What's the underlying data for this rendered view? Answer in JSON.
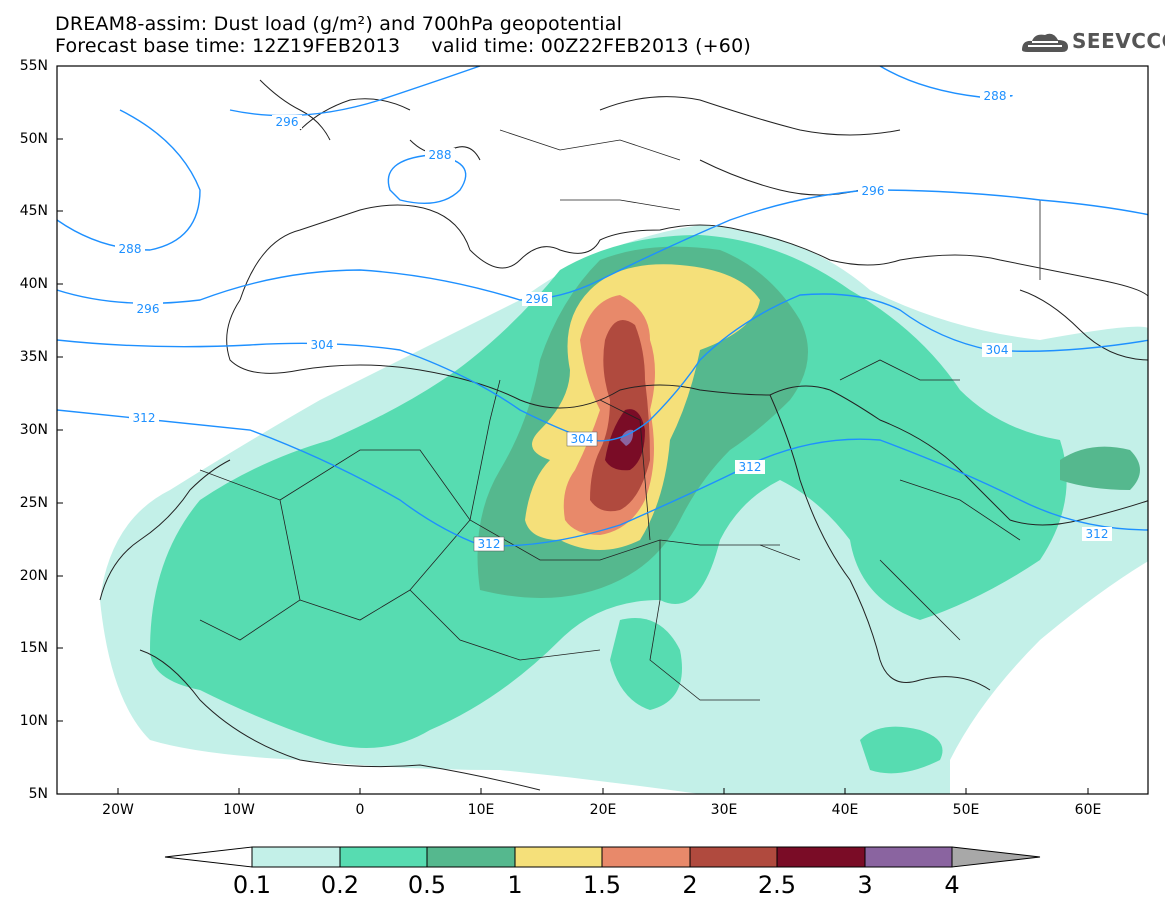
{
  "title": {
    "line1": "DREAM8-assim: Dust load (g/m²) and 700hPa geopotential",
    "line2": "Forecast base time: 12Z19FEB2013     valid time: 00Z22FEB2013 (+60)"
  },
  "logo": {
    "text": "SEEVCCC",
    "icon": "cloud-icon"
  },
  "map": {
    "lat_labels": [
      "55N",
      "50N",
      "45N",
      "40N",
      "35N",
      "30N",
      "25N",
      "20N",
      "15N",
      "10N",
      "5N"
    ],
    "lon_labels": [
      "20W",
      "10W",
      "0",
      "10E",
      "20E",
      "30E",
      "40E",
      "50E",
      "60E"
    ],
    "contour_color": "#1e90ff",
    "contour_labels": [
      "296",
      "288",
      "288",
      "296",
      "296",
      "304",
      "304",
      "312",
      "304",
      "312",
      "312",
      "312",
      "296",
      "288"
    ]
  },
  "colorbar": {
    "labels": [
      "0.1",
      "0.2",
      "0.5",
      "1",
      "1.5",
      "2",
      "2.5",
      "3",
      "4"
    ],
    "colors": [
      "#c3f0e8",
      "#57dcb1",
      "#55b88e",
      "#f5e07a",
      "#e8896a",
      "#b04a3e",
      "#7a0c26",
      "#8a64a0",
      "#a8a8a8"
    ]
  }
}
